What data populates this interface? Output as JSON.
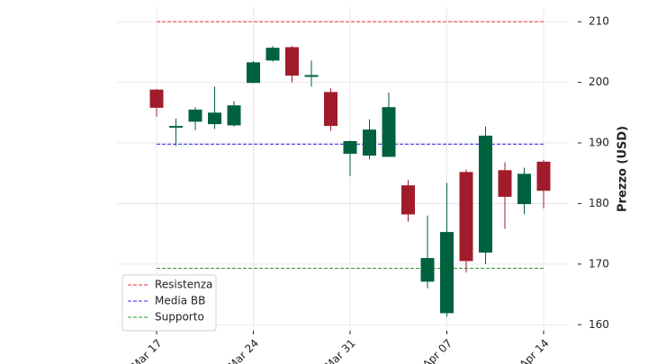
{
  "chart_data": {
    "type": "candlestick",
    "categories": [
      "Mar 17",
      null,
      null,
      null,
      null,
      "Mar 24",
      null,
      null,
      null,
      null,
      "Mar 31",
      null,
      null,
      null,
      null,
      "Apr 07",
      null,
      null,
      null,
      null,
      "Apr 14"
    ],
    "open": [
      198.8,
      192.5,
      193.5,
      193.1,
      192.9,
      199.9,
      203.6,
      205.8,
      200.9,
      198.4,
      188.2,
      187.9,
      187.7,
      183.0,
      167.1,
      161.9,
      185.2,
      171.9,
      185.5,
      179.9,
      186.9
    ],
    "high": [
      198.9,
      194.0,
      195.9,
      199.3,
      196.9,
      203.5,
      206.0,
      206.0,
      203.6,
      199.0,
      190.4,
      193.9,
      198.3,
      183.9,
      178.0,
      183.4,
      185.6,
      192.7,
      186.8,
      185.9,
      187.2
    ],
    "low": [
      194.3,
      189.5,
      192.1,
      192.3,
      192.7,
      199.9,
      203.4,
      200.0,
      199.3,
      192.0,
      184.5,
      187.3,
      187.7,
      177.0,
      166.0,
      161.3,
      168.6,
      170.0,
      175.8,
      178.2,
      179.2
    ],
    "close": [
      195.8,
      192.8,
      195.5,
      195.0,
      196.2,
      203.3,
      205.7,
      201.1,
      201.2,
      192.8,
      190.3,
      192.2,
      195.9,
      178.2,
      171.0,
      175.3,
      170.5,
      191.2,
      181.1,
      184.9,
      182.1
    ],
    "up_color": "#00613f",
    "down_color": "#a11c2b",
    "lines": [
      {
        "name": "Resistenza",
        "value": 210,
        "color": "#e8312b"
      },
      {
        "name": "Media BB",
        "value": 189.8,
        "color": "#2a2ae8"
      },
      {
        "name": "Supporto",
        "value": 169.3,
        "color": "#2a9a2a"
      }
    ],
    "ylabel": "Prezzo (USD)",
    "ylim": [
      159,
      212.4
    ],
    "yticks": [
      160,
      170,
      180,
      190,
      200,
      210
    ],
    "grid": true,
    "legend": "lower left"
  }
}
